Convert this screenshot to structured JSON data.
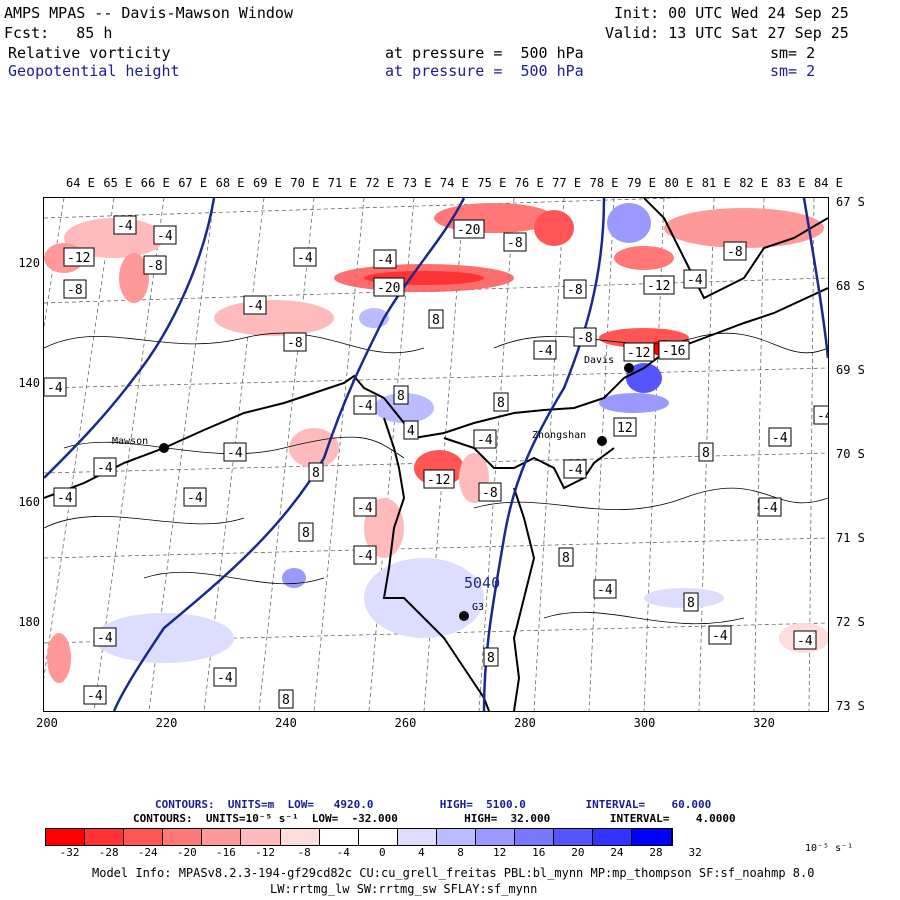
{
  "header": {
    "title": "AMPS MPAS -- Davis-Mawson Window",
    "init": "Init: 00 UTC Wed 24 Sep 25",
    "fcst": "Fcst:   85 h",
    "valid": "Valid: 13 UTC Sat 27 Sep 25",
    "field1_name": "Relative vorticity",
    "field1_level": "at pressure =  500 hPa",
    "field1_sm": "sm= 2",
    "field2_name": "Geopotential height",
    "field2_level": "at pressure =  500 hPa",
    "field2_sm": "sm= 2"
  },
  "map": {
    "top_lon_labels": [
      "64 E",
      "65 E",
      "66 E",
      "67 E",
      "68 E",
      "69 E",
      "70 E",
      "71 E",
      "72 E",
      "73 E",
      "74 E",
      "75 E",
      "76 E",
      "77 E",
      "78 E",
      "79 E",
      "80 E",
      "81 E",
      "82 E",
      "83 E",
      "84 E"
    ],
    "right_lat_labels": [
      "67 S",
      "68 S",
      "69 S",
      "70 S",
      "71 S",
      "72 S",
      "73 S"
    ],
    "left_y_labels": [
      "120",
      "140",
      "160",
      "180"
    ],
    "bottom_x_labels": [
      "200",
      "220",
      "240",
      "260",
      "280",
      "300",
      "320"
    ],
    "stations": [
      {
        "name": "Mawson"
      },
      {
        "name": "Davis"
      },
      {
        "name": "Zhongshan"
      },
      {
        "name": "G3"
      }
    ],
    "height_contour_label": "5040",
    "vort_labels": [
      "-4",
      "-8",
      "-12",
      "-16",
      "-20",
      "4",
      "8",
      "12"
    ],
    "colors": {
      "geopotential": "#1a2a8c",
      "coast": "#000000"
    }
  },
  "contour_info": {
    "line1": "CONTOURS:  UNITS=m  LOW=   4920.0          HIGH=  5100.0         INTERVAL=    60.000",
    "line2": "CONTOURS:  UNITS=10⁻⁵ s⁻¹  LOW=  -32.000          HIGH=  32.000         INTERVAL=    4.0000"
  },
  "colorbar": {
    "colors": [
      "#ff0000",
      "#ff3333",
      "#ff5555",
      "#ff7777",
      "#ff9999",
      "#ffbbbb",
      "#ffdddd",
      "#ffffff",
      "#ffffff",
      "#ddddff",
      "#bbbbff",
      "#9999ff",
      "#7777ff",
      "#5555ff",
      "#3333ff",
      "#0000ff"
    ],
    "ticks": [
      "-32",
      "-28",
      "-24",
      "-20",
      "-16",
      "-12",
      "-8",
      "-4",
      "0",
      "4",
      "8",
      "12",
      "16",
      "20",
      "24",
      "28",
      "32"
    ],
    "unit": "10⁻⁵ s⁻¹"
  },
  "footer": {
    "line1": "Model Info: MPASv8.2.3-194-gf29cd82c CU:cu_grell_freitas PBL:bl_mynn MP:mp_thompson SF:sf_noahmp 8.0",
    "line2": "LW:rrtmg_lw SW:rrtmg_sw SFLAY:sf_mynn"
  }
}
